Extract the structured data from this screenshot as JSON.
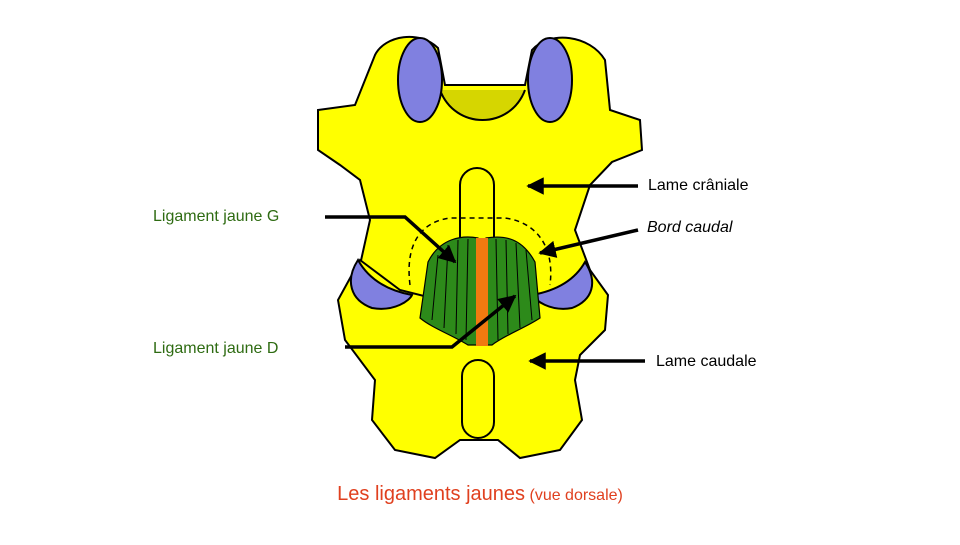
{
  "labels": {
    "ligament_g": "Ligament jaune G",
    "ligament_d": "Ligament jaune D",
    "lame_craniale": "Lame crâniale",
    "bord_caudal": "Bord caudal",
    "lame_caudale": "Lame caudale"
  },
  "caption": {
    "main": "Les ligaments jaunes",
    "sub": "(vue dorsale)"
  },
  "colors": {
    "bone": "#ffff00",
    "articular_facet": "#8080e0",
    "ligament_green": "#2d8a1a",
    "ligament_orange": "#f07a10",
    "canal": "#d6d600",
    "label_green": "#2e6b12",
    "caption_red": "#e0401f"
  }
}
